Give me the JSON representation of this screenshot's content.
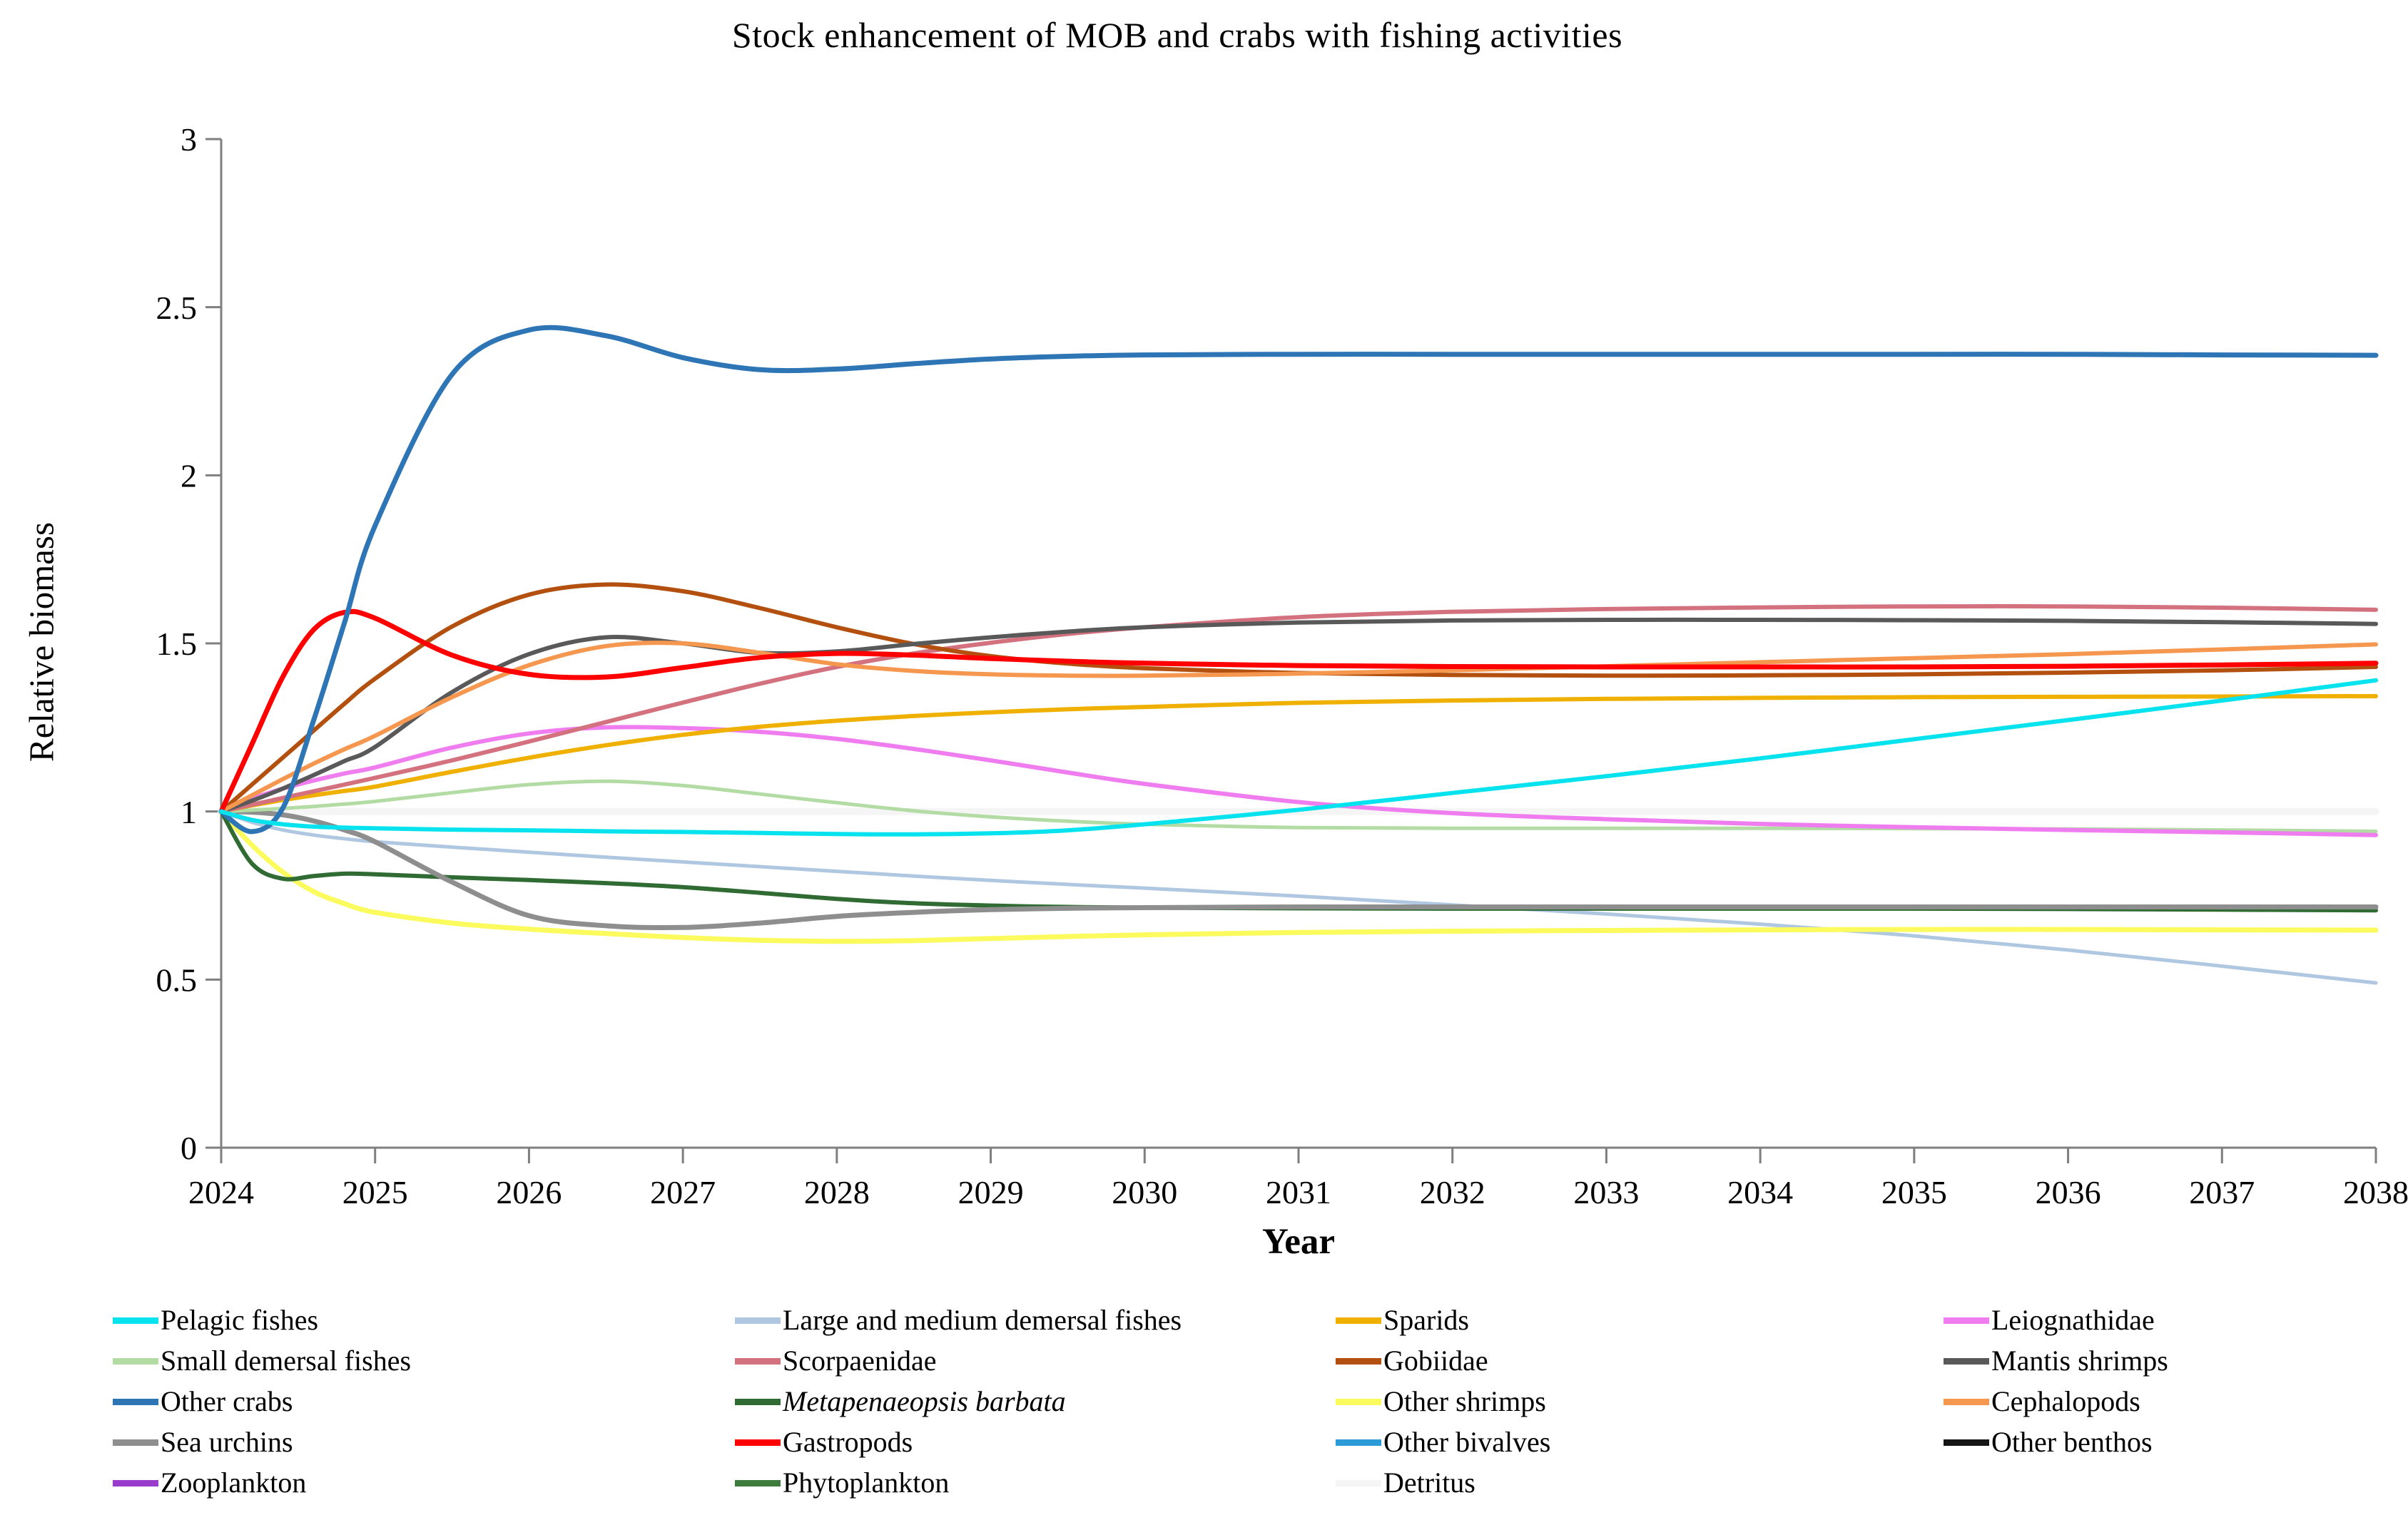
{
  "title": "Stock enhancement of MOB and crabs with fishing activities",
  "axes": {
    "x_label": "Year",
    "y_label": "Relative biomass"
  },
  "colors": {
    "axis": "#7f7f7f",
    "text": "#000000",
    "background": "#ffffff"
  },
  "chart_data": {
    "type": "line",
    "title": "Stock enhancement of MOB and crabs with fishing activities",
    "xlabel": "Year",
    "ylabel": "Relative biomass",
    "xlim": [
      2024,
      2038
    ],
    "ylim": [
      0,
      3
    ],
    "xticks": [
      2024,
      2025,
      2026,
      2027,
      2028,
      2029,
      2030,
      2031,
      2032,
      2033,
      2034,
      2035,
      2036,
      2037,
      2038
    ],
    "yticks": [
      0,
      0.5,
      1,
      1.5,
      2,
      2.5,
      3
    ],
    "grid": false,
    "legend_position": "bottom",
    "legend_columns": 4,
    "x": [
      2024,
      2024.2,
      2024.4,
      2024.6,
      2024.8,
      2025,
      2025.5,
      2026,
      2026.5,
      2027,
      2027.5,
      2028,
      2028.5,
      2029,
      2029.5,
      2030,
      2031,
      2032,
      2033,
      2034,
      2035,
      2036,
      2037,
      2038
    ],
    "series": [
      {
        "id": "pelagic-fishes",
        "name": "Pelagic fishes",
        "color": "#06E3EE",
        "width": 6,
        "values": [
          1.0,
          0.975,
          0.962,
          0.955,
          0.952,
          0.95,
          0.946,
          0.944,
          0.941,
          0.939,
          0.936,
          0.933,
          0.932,
          0.935,
          0.944,
          0.962,
          1.005,
          1.055,
          1.105,
          1.158,
          1.215,
          1.272,
          1.33,
          1.39
        ]
      },
      {
        "id": "large-medium-demersal-fishes",
        "name": "Large and medium demersal fishes",
        "color": "#AFC7E0",
        "width": 5,
        "values": [
          1.0,
          0.968,
          0.945,
          0.93,
          0.919,
          0.91,
          0.894,
          0.879,
          0.864,
          0.85,
          0.836,
          0.822,
          0.808,
          0.795,
          0.783,
          0.772,
          0.748,
          0.722,
          0.695,
          0.665,
          0.63,
          0.588,
          0.54,
          0.49
        ]
      },
      {
        "id": "sparids",
        "name": "Sparids",
        "color": "#F0B000",
        "width": 6,
        "values": [
          1.0,
          1.018,
          1.034,
          1.048,
          1.061,
          1.074,
          1.118,
          1.16,
          1.197,
          1.228,
          1.252,
          1.27,
          1.284,
          1.295,
          1.304,
          1.311,
          1.323,
          1.33,
          1.335,
          1.338,
          1.34,
          1.341,
          1.342,
          1.343
        ]
      },
      {
        "id": "leiognathidae",
        "name": "Leiognathidae",
        "color": "#F07DF0",
        "width": 6,
        "values": [
          1.0,
          1.038,
          1.068,
          1.092,
          1.113,
          1.131,
          1.19,
          1.232,
          1.25,
          1.248,
          1.237,
          1.216,
          1.186,
          1.152,
          1.116,
          1.082,
          1.028,
          0.995,
          0.977,
          0.963,
          0.953,
          0.945,
          0.938,
          0.93
        ]
      },
      {
        "id": "small-demersal-fishes",
        "name": "Small demersal fishes",
        "color": "#B2DCA4",
        "width": 5,
        "values": [
          1.0,
          1.004,
          1.009,
          1.015,
          1.022,
          1.03,
          1.056,
          1.08,
          1.09,
          1.077,
          1.052,
          1.026,
          1.002,
          0.984,
          0.971,
          0.962,
          0.952,
          0.95,
          0.95,
          0.95,
          0.949,
          0.948,
          0.945,
          0.941
        ]
      },
      {
        "id": "scorpaenidae",
        "name": "Scorpaenidae",
        "color": "#D4717F",
        "width": 6,
        "values": [
          1.0,
          1.02,
          1.04,
          1.06,
          1.08,
          1.1,
          1.152,
          1.208,
          1.266,
          1.324,
          1.38,
          1.43,
          1.47,
          1.502,
          1.528,
          1.548,
          1.578,
          1.594,
          1.602,
          1.607,
          1.61,
          1.61,
          1.606,
          1.6
        ]
      },
      {
        "id": "gobiidae",
        "name": "Gobiidae",
        "color": "#B3500F",
        "width": 6,
        "values": [
          1.0,
          1.08,
          1.16,
          1.24,
          1.32,
          1.395,
          1.55,
          1.645,
          1.675,
          1.655,
          1.605,
          1.548,
          1.498,
          1.462,
          1.44,
          1.426,
          1.412,
          1.406,
          1.404,
          1.405,
          1.408,
          1.413,
          1.42,
          1.43
        ]
      },
      {
        "id": "mantis-shrimps",
        "name": "Mantis shrimps",
        "color": "#595959",
        "width": 6,
        "values": [
          1.0,
          1.032,
          1.068,
          1.108,
          1.15,
          1.192,
          1.355,
          1.468,
          1.518,
          1.5,
          1.472,
          1.476,
          1.498,
          1.518,
          1.535,
          1.548,
          1.562,
          1.568,
          1.57,
          1.57,
          1.569,
          1.567,
          1.563,
          1.558
        ]
      },
      {
        "id": "other-crabs",
        "name": "Other crabs",
        "color": "#2E75B6",
        "width": 7,
        "values": [
          1.0,
          0.94,
          1.01,
          1.27,
          1.56,
          1.85,
          2.3,
          2.432,
          2.415,
          2.35,
          2.314,
          2.316,
          2.332,
          2.346,
          2.354,
          2.358,
          2.36,
          2.36,
          2.36,
          2.36,
          2.36,
          2.36,
          2.358,
          2.357
        ]
      },
      {
        "id": "metapenaeopsis-barbata",
        "name": "Metapenaeopsis barbata",
        "italic": true,
        "color": "#2F6B33",
        "width": 6,
        "values": [
          1.0,
          0.845,
          0.8,
          0.808,
          0.815,
          0.813,
          0.804,
          0.796,
          0.787,
          0.775,
          0.758,
          0.74,
          0.727,
          0.72,
          0.716,
          0.714,
          0.712,
          0.711,
          0.711,
          0.711,
          0.711,
          0.71,
          0.708,
          0.706
        ]
      },
      {
        "id": "other-shrimps",
        "name": "Other shrimps",
        "color": "#FBFB5E",
        "width": 7,
        "values": [
          1.0,
          0.9,
          0.82,
          0.762,
          0.726,
          0.7,
          0.668,
          0.65,
          0.637,
          0.625,
          0.617,
          0.614,
          0.616,
          0.622,
          0.628,
          0.633,
          0.64,
          0.644,
          0.646,
          0.648,
          0.649,
          0.649,
          0.648,
          0.647
        ]
      },
      {
        "id": "cephalopods",
        "name": "Cephalopods",
        "color": "#F5974E",
        "width": 6,
        "values": [
          1.0,
          1.048,
          1.096,
          1.142,
          1.185,
          1.225,
          1.34,
          1.435,
          1.492,
          1.5,
          1.472,
          1.438,
          1.418,
          1.408,
          1.404,
          1.404,
          1.41,
          1.42,
          1.432,
          1.444,
          1.456,
          1.468,
          1.482,
          1.497
        ]
      },
      {
        "id": "sea-urchins",
        "name": "Sea urchins",
        "color": "#8E8E8E",
        "width": 7,
        "values": [
          1.0,
          0.998,
          0.99,
          0.972,
          0.945,
          0.91,
          0.79,
          0.69,
          0.66,
          0.655,
          0.668,
          0.688,
          0.7,
          0.708,
          0.712,
          0.714,
          0.716,
          0.716,
          0.716,
          0.716,
          0.716,
          0.716,
          0.716,
          0.716
        ]
      },
      {
        "id": "gastropods",
        "name": "Gastropods",
        "color": "#FE0000",
        "width": 7,
        "values": [
          1.0,
          1.2,
          1.4,
          1.54,
          1.592,
          1.575,
          1.465,
          1.408,
          1.4,
          1.428,
          1.458,
          1.47,
          1.465,
          1.455,
          1.447,
          1.441,
          1.434,
          1.431,
          1.43,
          1.43,
          1.43,
          1.432,
          1.436,
          1.441
        ]
      },
      {
        "id": "other-bivalves",
        "name": "Other bivalves",
        "color": "#2E9BD9",
        "width": 4,
        "values": [
          1,
          1,
          1,
          1,
          1,
          1,
          1,
          1,
          1,
          1,
          1,
          1,
          1,
          1,
          1,
          1,
          1,
          1,
          1,
          1,
          1,
          1,
          1,
          1
        ]
      },
      {
        "id": "other-benthos",
        "name": "Other benthos",
        "color": "#151515",
        "width": 4,
        "values": [
          1,
          1,
          1,
          1,
          1,
          1,
          1,
          1,
          1,
          1,
          1,
          1,
          1,
          1,
          1,
          1,
          1,
          1,
          1,
          1,
          1,
          1,
          1,
          1
        ]
      },
      {
        "id": "zooplankton",
        "name": "Zooplankton",
        "color": "#993BCB",
        "width": 4,
        "values": [
          1,
          1,
          1,
          1,
          1,
          1,
          1,
          1,
          1,
          1,
          1,
          1,
          1,
          1,
          1,
          1,
          1,
          1,
          1,
          1,
          1,
          1,
          1,
          1
        ]
      },
      {
        "id": "phytoplankton",
        "name": "Phytoplankton",
        "color": "#3E7C3E",
        "width": 4,
        "values": [
          1,
          1,
          1,
          1,
          1,
          1,
          1,
          1,
          1,
          1,
          1,
          1,
          1,
          1,
          1,
          1,
          1,
          1,
          1,
          1,
          1,
          1,
          1,
          1
        ]
      },
      {
        "id": "detritus",
        "name": "Detritus",
        "color": "#F5F5F5",
        "width": 10,
        "values": [
          1,
          1,
          1,
          1,
          1,
          1,
          1,
          1,
          1,
          1,
          1,
          1,
          1,
          1,
          1,
          1,
          1,
          1,
          1,
          1,
          1,
          1,
          1,
          1
        ]
      }
    ],
    "draw_order": [
      14,
      15,
      16,
      17,
      18,
      1,
      10,
      9,
      12,
      4,
      3,
      2,
      5,
      6,
      7,
      11,
      13,
      8,
      0
    ]
  }
}
